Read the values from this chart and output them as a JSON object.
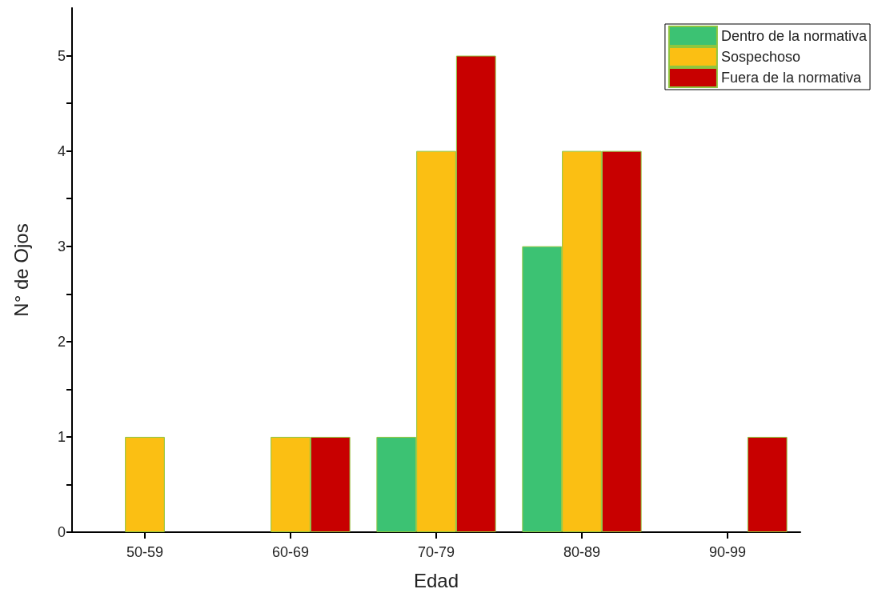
{
  "chart_data": {
    "type": "bar",
    "xlabel": "Edad",
    "ylabel": "N° de Ojos",
    "categories": [
      "50-59",
      "60-69",
      "70-79",
      "80-89",
      "90-99"
    ],
    "series": [
      {
        "name": "Dentro de la normativa",
        "color": "#3cc273",
        "values": [
          0,
          0,
          1,
          3,
          0
        ]
      },
      {
        "name": "Sospechoso",
        "color": "#fbbf13",
        "values": [
          1,
          1,
          4,
          4,
          0
        ]
      },
      {
        "name": "Fuera de la normativa",
        "color": "#c80000",
        "values": [
          0,
          1,
          5,
          4,
          1
        ]
      }
    ],
    "ylim": [
      0,
      5.5
    ],
    "yticks": [
      0,
      {
        "value": 0.5,
        "label": null
      },
      1,
      {
        "value": 1.5,
        "label": null
      },
      2,
      {
        "value": 2.5,
        "label": null
      },
      3,
      {
        "value": 3.5,
        "label": null
      },
      4,
      {
        "value": 4.5,
        "label": null
      },
      5
    ],
    "grid": false,
    "legend": "top right"
  }
}
